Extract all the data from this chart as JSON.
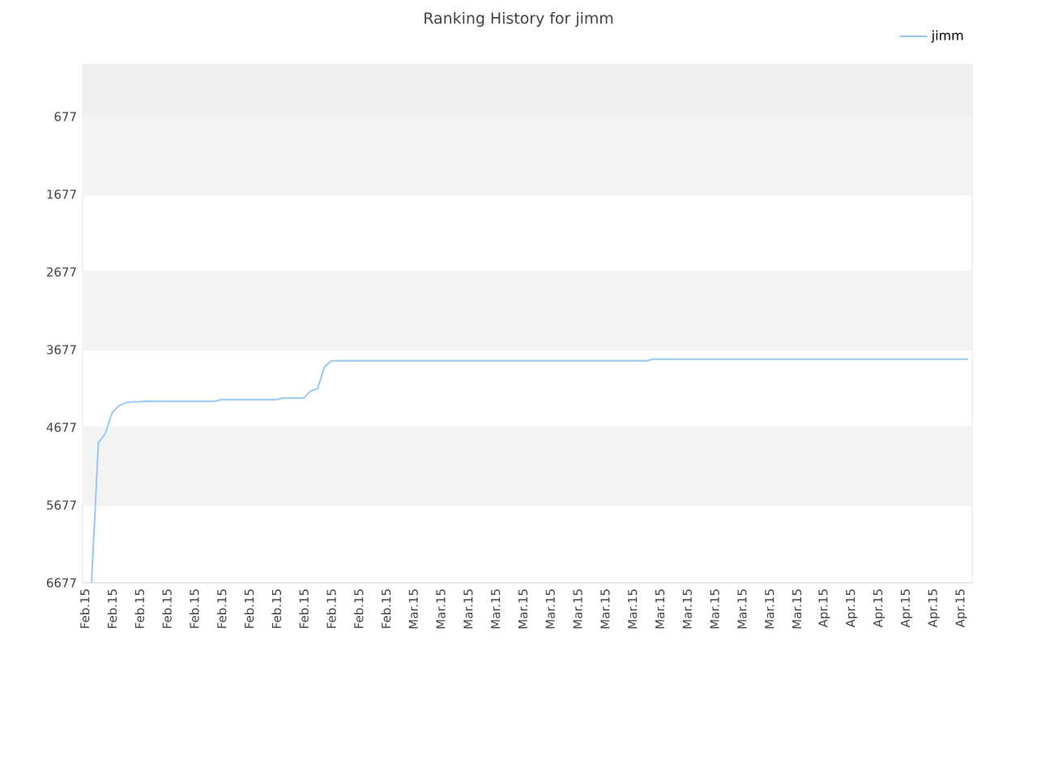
{
  "chart_data": {
    "type": "line",
    "title": "Ranking History for jimm",
    "categories": [
      "Feb.15",
      null,
      null,
      null,
      "Feb.15",
      null,
      null,
      null,
      "Feb.15",
      null,
      null,
      null,
      "Feb.15",
      null,
      null,
      null,
      "Feb.15",
      null,
      null,
      null,
      "Feb.15",
      null,
      null,
      null,
      "Feb.15",
      null,
      null,
      null,
      "Feb.15",
      null,
      null,
      null,
      "Feb.15",
      null,
      null,
      null,
      "Feb.15",
      null,
      null,
      null,
      "Feb.15",
      null,
      null,
      null,
      "Feb.15",
      null,
      null,
      null,
      "Mar.15",
      null,
      null,
      null,
      "Mar.15",
      null,
      null,
      null,
      "Mar.15",
      null,
      null,
      null,
      "Mar.15",
      null,
      null,
      null,
      "Mar.15",
      null,
      null,
      null,
      "Mar.15",
      null,
      null,
      null,
      "Mar.15",
      null,
      null,
      null,
      "Mar.15",
      null,
      null,
      null,
      "Mar.15",
      null,
      null,
      null,
      "Mar.15",
      null,
      null,
      null,
      "Mar.15",
      null,
      null,
      null,
      "Mar.15",
      null,
      null,
      null,
      "Mar.15",
      null,
      null,
      null,
      "Mar.15",
      null,
      null,
      null,
      "Mar.15",
      null,
      null,
      null,
      "Apr.15",
      null,
      null,
      null,
      "Apr.15",
      null,
      null,
      null,
      "Apr.15",
      null,
      null,
      null,
      "Apr.15",
      null,
      null,
      null,
      "Apr.15",
      null,
      null,
      null,
      "Apr.15",
      null
    ],
    "series": [
      {
        "name": "jimm",
        "color": "#99c8f2",
        "values": [
          null,
          6677,
          4870,
          4760,
          4490,
          4400,
          4360,
          4350,
          4350,
          4340,
          4340,
          4340,
          4340,
          4340,
          4340,
          4340,
          4340,
          4340,
          4340,
          4340,
          4320,
          4320,
          4320,
          4320,
          4320,
          4320,
          4320,
          4320,
          4320,
          4300,
          4300,
          4300,
          4300,
          4210,
          4180,
          3900,
          3820,
          3820,
          3820,
          3820,
          3820,
          3820,
          3820,
          3820,
          3820,
          3820,
          3820,
          3820,
          3820,
          3820,
          3820,
          3820,
          3820,
          3820,
          3820,
          3820,
          3820,
          3820,
          3820,
          3820,
          3820,
          3820,
          3820,
          3820,
          3820,
          3820,
          3820,
          3820,
          3820,
          3820,
          3820,
          3820,
          3820,
          3820,
          3820,
          3820,
          3820,
          3820,
          3820,
          3820,
          3820,
          3820,
          3820,
          3800,
          3800,
          3800,
          3800,
          3800,
          3800,
          3800,
          3800,
          3800,
          3800,
          3800,
          3800,
          3800,
          3800,
          3800,
          3800,
          3800,
          3800,
          3800,
          3800,
          3800,
          3800,
          3800,
          3800,
          3800,
          3800,
          3800,
          3800,
          3800,
          3800,
          3800,
          3800,
          3800,
          3800,
          3800,
          3800,
          3800,
          3800,
          3800,
          3800,
          3800,
          3800,
          3800,
          3800,
          3800,
          3800,
          3800
        ]
      }
    ],
    "ylim": [
      6677,
      10
    ],
    "yticks": [
      677,
      1677,
      2677,
      3677,
      4677,
      5677,
      6677
    ],
    "bands": [
      {
        "axis": "y",
        "from": 10,
        "to": 677,
        "color": "#eeeeee"
      },
      {
        "axis": "y",
        "from": 677,
        "to": 1677,
        "color": "#f3f3f3"
      },
      {
        "axis": "y",
        "from": 2677,
        "to": 3677,
        "color": "#f3f3f3"
      },
      {
        "axis": "y",
        "from": 4677,
        "to": 5677,
        "color": "#f3f3f3"
      }
    ],
    "grid": "y",
    "legend": "top right",
    "marker": "none",
    "line_style": "solid"
  }
}
